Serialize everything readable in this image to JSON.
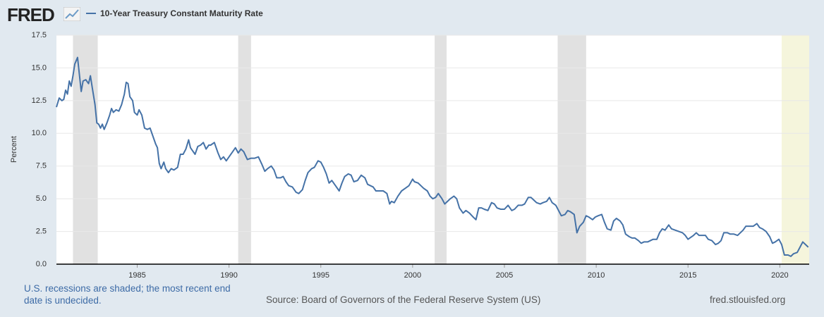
{
  "header": {
    "logo": "FRED"
  },
  "chart_data": {
    "type": "line",
    "y_label": "Percent",
    "series": [
      {
        "name": "10-Year Treasury Constant Maturity Rate",
        "color": "#4572a7",
        "x": [
          1980.6,
          1980.75,
          1980.9,
          1981.0,
          1981.1,
          1981.2,
          1981.3,
          1981.4,
          1981.5,
          1981.6,
          1981.75,
          1981.85,
          1981.95,
          1982.05,
          1982.2,
          1982.35,
          1982.45,
          1982.55,
          1982.7,
          1982.8,
          1982.9,
          1983.0,
          1983.1,
          1983.2,
          1983.35,
          1983.5,
          1983.6,
          1983.7,
          1983.85,
          1984.0,
          1984.15,
          1984.3,
          1984.4,
          1984.5,
          1984.6,
          1984.75,
          1984.85,
          1985.0,
          1985.1,
          1985.25,
          1985.4,
          1985.55,
          1985.7,
          1985.85,
          1986.0,
          1986.1,
          1986.2,
          1986.3,
          1986.45,
          1986.55,
          1986.7,
          1986.85,
          1987.0,
          1987.2,
          1987.35,
          1987.5,
          1987.65,
          1987.8,
          1987.9,
          1988.0,
          1988.15,
          1988.3,
          1988.45,
          1988.6,
          1988.75,
          1988.9,
          1989.0,
          1989.2,
          1989.4,
          1989.55,
          1989.7,
          1989.85,
          1990.0,
          1990.2,
          1990.35,
          1990.5,
          1990.65,
          1990.8,
          1991.0,
          1991.2,
          1991.4,
          1991.6,
          1991.8,
          1991.95,
          1992.1,
          1992.3,
          1992.45,
          1992.6,
          1992.8,
          1992.95,
          1993.1,
          1993.25,
          1993.45,
          1993.65,
          1993.8,
          1994.0,
          1994.15,
          1994.3,
          1994.5,
          1994.65,
          1994.85,
          1995.0,
          1995.15,
          1995.3,
          1995.45,
          1995.6,
          1995.8,
          1996.0,
          1996.15,
          1996.3,
          1996.5,
          1996.65,
          1996.8,
          1997.0,
          1997.2,
          1997.4,
          1997.55,
          1997.7,
          1997.85,
          1998.0,
          1998.2,
          1998.4,
          1998.6,
          1998.75,
          1998.85,
          1999.0,
          1999.2,
          1999.4,
          1999.6,
          1999.8,
          2000.0,
          2000.1,
          2000.3,
          2000.45,
          2000.6,
          2000.8,
          2000.95,
          2001.1,
          2001.25,
          2001.4,
          2001.6,
          2001.75,
          2001.9,
          2002.05,
          2002.25,
          2002.4,
          2002.55,
          2002.75,
          2002.9,
          2003.1,
          2003.3,
          2003.45,
          2003.6,
          2003.75,
          2003.9,
          2004.1,
          2004.3,
          2004.45,
          2004.6,
          2004.8,
          2005.0,
          2005.2,
          2005.4,
          2005.55,
          2005.75,
          2005.95,
          2006.1,
          2006.3,
          2006.45,
          2006.6,
          2006.75,
          2006.95,
          2007.1,
          2007.3,
          2007.45,
          2007.6,
          2007.8,
          2007.95,
          2008.1,
          2008.3,
          2008.45,
          2008.6,
          2008.8,
          2008.95,
          2009.1,
          2009.3,
          2009.45,
          2009.6,
          2009.8,
          2009.95,
          2010.1,
          2010.3,
          2010.45,
          2010.6,
          2010.8,
          2010.95,
          2011.1,
          2011.3,
          2011.45,
          2011.6,
          2011.8,
          2011.95,
          2012.1,
          2012.3,
          2012.45,
          2012.6,
          2012.8,
          2012.95,
          2013.1,
          2013.3,
          2013.45,
          2013.6,
          2013.75,
          2013.95,
          2014.1,
          2014.3,
          2014.5,
          2014.7,
          2014.85,
          2015.0,
          2015.1,
          2015.3,
          2015.45,
          2015.6,
          2015.8,
          2015.95,
          2016.1,
          2016.3,
          2016.5,
          2016.65,
          2016.8,
          2016.95,
          2017.15,
          2017.3,
          2017.5,
          2017.7,
          2017.85,
          2018.0,
          2018.15,
          2018.35,
          2018.55,
          2018.75,
          2018.9,
          2019.05,
          2019.25,
          2019.45,
          2019.6,
          2019.75,
          2019.95,
          2020.1,
          2020.25,
          2020.45,
          2020.6,
          2020.75,
          2020.95,
          2021.1,
          2021.25,
          2021.4,
          2021.55
        ],
        "values": [
          12.0,
          12.7,
          12.5,
          12.6,
          13.3,
          13.0,
          14.0,
          13.6,
          14.4,
          15.3,
          15.8,
          14.5,
          13.2,
          14.0,
          14.1,
          13.8,
          14.4,
          13.5,
          12.2,
          10.8,
          10.7,
          10.4,
          10.7,
          10.3,
          10.8,
          11.4,
          11.9,
          11.6,
          11.8,
          11.7,
          12.2,
          13.0,
          13.9,
          13.8,
          12.8,
          12.5,
          11.6,
          11.4,
          11.8,
          11.4,
          10.4,
          10.3,
          10.4,
          9.8,
          9.2,
          8.9,
          7.7,
          7.3,
          7.8,
          7.3,
          7.0,
          7.3,
          7.2,
          7.4,
          8.4,
          8.4,
          8.8,
          9.5,
          8.9,
          8.7,
          8.4,
          9.0,
          9.1,
          9.3,
          8.8,
          9.1,
          9.1,
          9.3,
          8.5,
          8.0,
          8.2,
          7.9,
          8.2,
          8.6,
          8.9,
          8.5,
          8.8,
          8.6,
          8.0,
          8.1,
          8.1,
          8.2,
          7.6,
          7.1,
          7.3,
          7.5,
          7.2,
          6.6,
          6.6,
          6.7,
          6.3,
          6.0,
          5.9,
          5.5,
          5.4,
          5.7,
          6.4,
          7.0,
          7.3,
          7.4,
          7.9,
          7.8,
          7.4,
          6.9,
          6.2,
          6.4,
          6.0,
          5.6,
          6.2,
          6.7,
          6.9,
          6.8,
          6.3,
          6.4,
          6.8,
          6.6,
          6.1,
          6.0,
          5.9,
          5.6,
          5.6,
          5.6,
          5.4,
          4.6,
          4.8,
          4.7,
          5.2,
          5.6,
          5.8,
          6.0,
          6.5,
          6.3,
          6.2,
          6.0,
          5.8,
          5.6,
          5.2,
          5.0,
          5.1,
          5.4,
          5.0,
          4.6,
          4.8,
          5.0,
          5.2,
          5.0,
          4.3,
          3.9,
          4.1,
          3.9,
          3.6,
          3.4,
          4.3,
          4.3,
          4.2,
          4.1,
          4.7,
          4.6,
          4.3,
          4.2,
          4.2,
          4.5,
          4.1,
          4.2,
          4.5,
          4.5,
          4.6,
          5.1,
          5.1,
          4.9,
          4.7,
          4.6,
          4.7,
          4.8,
          5.1,
          4.7,
          4.5,
          4.1,
          3.7,
          3.8,
          4.1,
          4.0,
          3.8,
          2.4,
          2.9,
          3.2,
          3.7,
          3.6,
          3.4,
          3.6,
          3.7,
          3.8,
          3.2,
          2.7,
          2.6,
          3.3,
          3.5,
          3.3,
          3.0,
          2.3,
          2.1,
          2.0,
          2.0,
          1.8,
          1.6,
          1.7,
          1.7,
          1.8,
          1.9,
          1.9,
          2.4,
          2.7,
          2.6,
          3.0,
          2.7,
          2.6,
          2.5,
          2.4,
          2.2,
          1.9,
          2.0,
          2.2,
          2.4,
          2.2,
          2.2,
          2.2,
          1.9,
          1.8,
          1.5,
          1.6,
          1.8,
          2.4,
          2.4,
          2.3,
          2.3,
          2.2,
          2.4,
          2.6,
          2.9,
          2.9,
          2.9,
          3.1,
          2.8,
          2.7,
          2.5,
          2.1,
          1.6,
          1.7,
          1.9,
          1.5,
          0.7,
          0.7,
          0.6,
          0.8,
          0.9,
          1.3,
          1.7,
          1.5,
          1.3
        ]
      }
    ],
    "xlim": [
      1980.6,
      2021.6
    ],
    "xticks": [
      1985,
      1990,
      1995,
      2000,
      2005,
      2010,
      2015,
      2020
    ],
    "ylim": [
      0,
      17.5
    ],
    "yticks": [
      {
        "value": 0,
        "label": "0.0"
      },
      2.5,
      {
        "value": 5,
        "label": "5.0"
      },
      7.5,
      {
        "value": 10,
        "label": "10.0"
      },
      12.5,
      {
        "value": 15,
        "label": "15.0"
      },
      17.5
    ],
    "grid": true,
    "recessions": [
      {
        "start": 1981.5,
        "end": 1982.85
      },
      {
        "start": 1990.5,
        "end": 1991.2
      },
      {
        "start": 2001.2,
        "end": 2001.85
      },
      {
        "start": 2007.9,
        "end": 2009.45
      },
      {
        "start": 2020.1,
        "end": null
      }
    ],
    "recession_color": "#e1e1e1",
    "undecided_color": "#f5f5dc",
    "note": "U.S. recessions are shaded; the most recent end date is undecided.",
    "source": "Source: Board of Governors of the Federal Reserve System (US)",
    "site": "fred.stlouisfed.org"
  }
}
